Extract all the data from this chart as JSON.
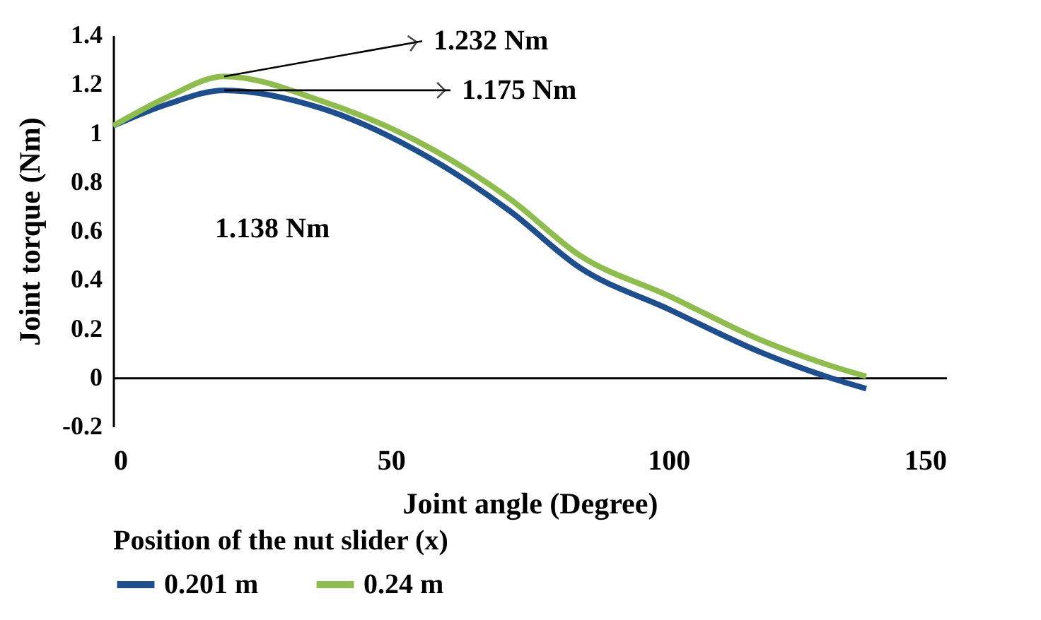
{
  "chart_data": {
    "type": "line",
    "xlabel": "Joint angle (Degree)",
    "ylabel": "Joint torque (Nm)",
    "legend_title": "Position of the nut slider (x)",
    "x": [
      0,
      10,
      20,
      37.7,
      54.5,
      71.5,
      84,
      100,
      117,
      129,
      135.6
    ],
    "series": [
      {
        "name": "0.201 m",
        "color": "#1f4e8c",
        "values": [
          1.03,
          1.12,
          1.175,
          1.1,
          0.93,
          0.68,
          0.45,
          0.28,
          0.1,
          0,
          -0.045
        ]
      },
      {
        "name": "0.24 m",
        "color": "#8fbc4f",
        "values": [
          1.03,
          1.15,
          1.232,
          1.13,
          0.97,
          0.73,
          0.5,
          0.335,
          0.15,
          0.05,
          0.005
        ]
      }
    ],
    "xlim": [
      0,
      150
    ],
    "xticks": [
      0,
      50,
      100,
      150
    ],
    "ylim": [
      -0.2,
      1.4
    ],
    "yticks": [
      -0.2,
      0,
      0.2,
      0.4,
      0.6,
      0.8,
      1,
      1.2,
      1.4
    ],
    "annotations": [
      {
        "text": "1.232 Nm",
        "x": 20,
        "y": 1.232
      },
      {
        "text": "1.175 Nm",
        "x": 20,
        "y": 1.175
      },
      "1.138 Nm"
    ],
    "grid": false,
    "legend": "bottom",
    "marker": "none",
    "line_style": "solid"
  }
}
